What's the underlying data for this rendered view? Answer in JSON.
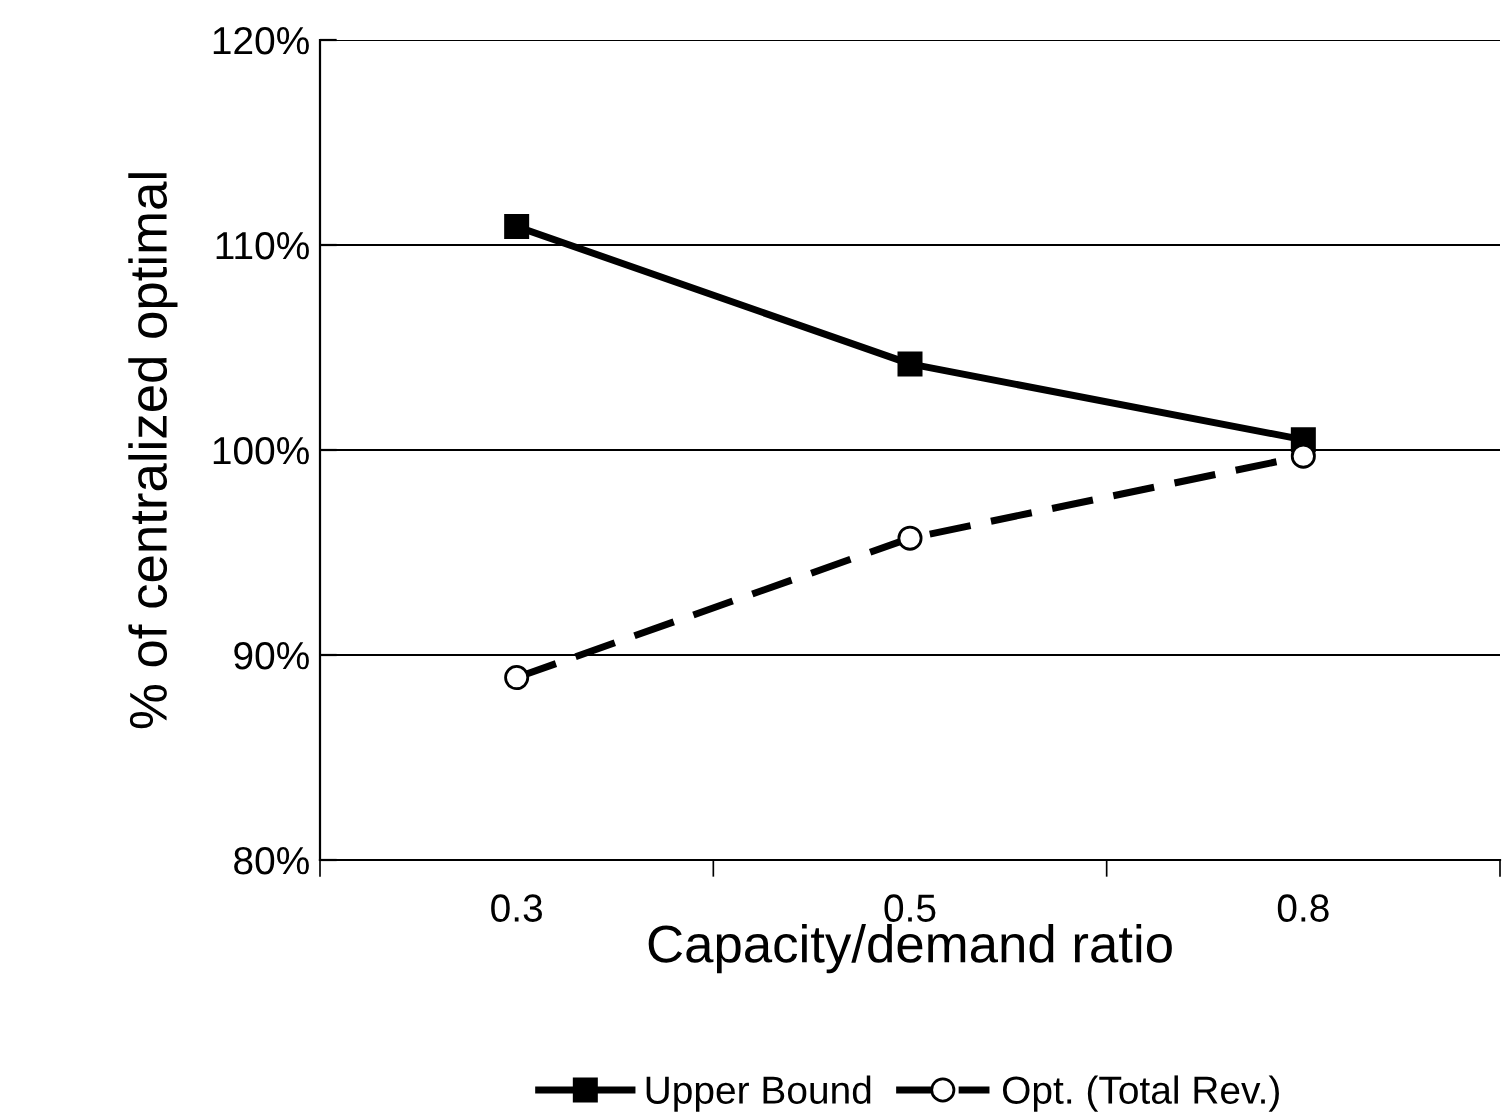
{
  "chart_data": {
    "type": "line",
    "xlabel": "Capacity/demand ratio",
    "ylabel": "% of centralized optimal",
    "categories": [
      "0.3",
      "0.5",
      "0.8"
    ],
    "series": [
      {
        "name": "Upper Bound",
        "color": "#000000",
        "values": [
          110.9,
          104.2,
          100.5
        ],
        "marker": "square",
        "line_style": "solid"
      },
      {
        "name": "Opt. (Total Rev.)",
        "color": "#000000",
        "values": [
          88.9,
          95.7,
          99.7
        ],
        "marker": "circle",
        "line_style": "dashed"
      }
    ],
    "ylim": [
      80,
      120
    ],
    "yticks": [
      {
        "value": 80,
        "label": "80%"
      },
      {
        "value": 90,
        "label": "90%"
      },
      {
        "value": 100,
        "label": "100%"
      },
      {
        "value": 110,
        "label": "110%"
      },
      {
        "value": 120,
        "label": "120%"
      }
    ],
    "grid": "y",
    "legend": "bottom"
  }
}
